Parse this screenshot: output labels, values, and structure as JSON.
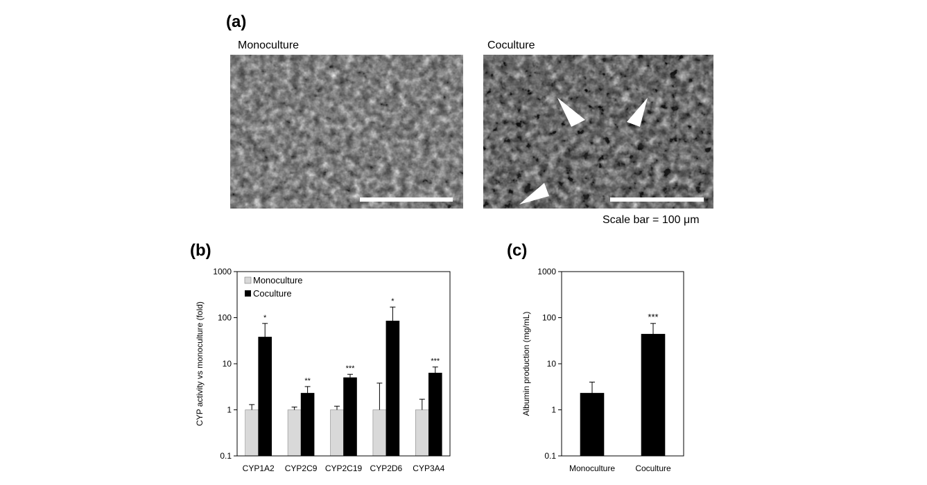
{
  "panels": {
    "a_label": "(a)",
    "b_label": "(b)",
    "c_label": "(c)"
  },
  "micrographs": {
    "monoculture_title": "Monoculture",
    "coculture_title": "Coculture",
    "scale_bar_text": "Scale bar = 100 μm",
    "colors": {
      "background": "#3a3a3a",
      "scale_bar": "#ffffff",
      "arrowhead": "#ffffff"
    }
  },
  "chart_data": [
    {
      "type": "bar",
      "panel": "b",
      "ylabel": "CYP activity vs monoculture (fold)",
      "yscale": "log",
      "ylim": [
        0.1,
        1000
      ],
      "yticks": [
        "0.1",
        "1",
        "10",
        "100",
        "1000"
      ],
      "categories": [
        "CYP1A2",
        "CYP2C9",
        "CYP2C19",
        "CYP2D6",
        "CYP3A4"
      ],
      "legend_position": "top-left",
      "grid": false,
      "series": [
        {
          "name": "Monoculture",
          "color": "#d9d9d9",
          "values": [
            1,
            1,
            1,
            1,
            1
          ],
          "error_upper": [
            1.3,
            1.15,
            1.2,
            3.8,
            1.7
          ]
        },
        {
          "name": "Coculture",
          "color": "#000000",
          "values": [
            38,
            2.3,
            5.0,
            85,
            6.3
          ],
          "error_upper": [
            75,
            3.2,
            5.9,
            170,
            8.5
          ]
        }
      ],
      "annotations": [
        "*",
        "**",
        "***",
        "*",
        "***"
      ]
    },
    {
      "type": "bar",
      "panel": "c",
      "ylabel": "Albumin production (mg/mL)",
      "yscale": "log",
      "ylim": [
        0.1,
        1000
      ],
      "yticks": [
        "0.1",
        "1",
        "10",
        "100",
        "1000"
      ],
      "categories": [
        "Monoculture",
        "Coculture"
      ],
      "grid": false,
      "series": [
        {
          "color": "#000000",
          "values": [
            2.3,
            44
          ],
          "error_upper": [
            4.0,
            75
          ]
        }
      ],
      "annotations": [
        "",
        "***"
      ]
    }
  ]
}
